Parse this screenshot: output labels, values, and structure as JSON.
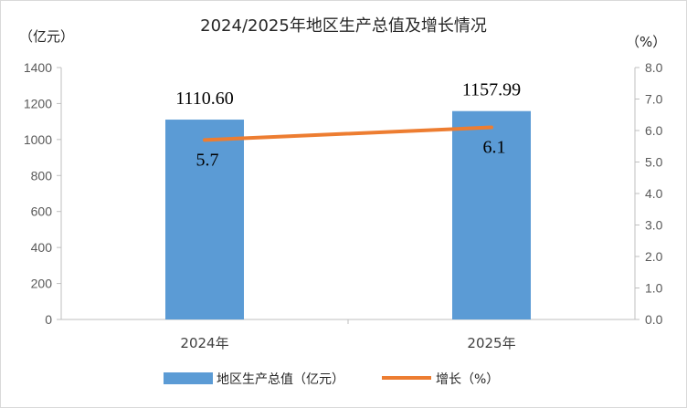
{
  "chart_data": {
    "type": "bar",
    "title": "2024/2025年地区生产总值及增长情况",
    "categories": [
      "2024年",
      "2025年"
    ],
    "series": [
      {
        "name": "地区生产总值（亿元）",
        "type": "bar",
        "axis": "left",
        "values": [
          1110.6,
          1157.99
        ],
        "labels": [
          "1110.60",
          "1157.99"
        ],
        "color": "#5b9bd5"
      },
      {
        "name": "增长（%）",
        "type": "line",
        "axis": "right",
        "values": [
          5.7,
          6.1
        ],
        "labels": [
          "5.7",
          "6.1"
        ],
        "color": "#ed7d31"
      }
    ],
    "ylabel": "（亿元）",
    "y2label": "（%）",
    "ylim": [
      0,
      1400
    ],
    "y2lim": [
      0,
      8.0
    ],
    "yticks": [
      "0",
      "200",
      "400",
      "600",
      "800",
      "1000",
      "1200",
      "1400"
    ],
    "y2ticks": [
      "0.0",
      "1.0",
      "2.0",
      "3.0",
      "4.0",
      "5.0",
      "6.0",
      "7.0",
      "8.0"
    ],
    "grid": false,
    "legend": "bottom"
  }
}
